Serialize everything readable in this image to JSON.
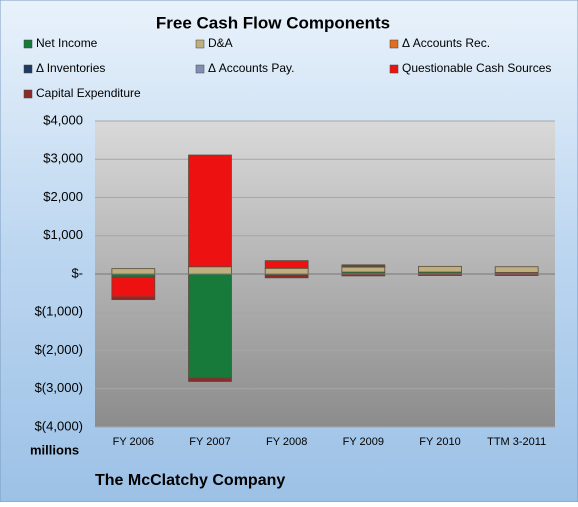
{
  "chart_data": {
    "type": "stacked_bar",
    "title": "Free Cash Flow Components",
    "categories": [
      "FY 2006",
      "FY 2007",
      "FY 2008",
      "FY 2009",
      "FY 2010",
      "TTM 3-2011"
    ],
    "series": [
      {
        "name": "Net Income",
        "color": "#17793a",
        "values": [
          -80,
          -2720,
          -20,
          50,
          50,
          40
        ]
      },
      {
        "name": "D&A",
        "color": "#bfae7e",
        "values": [
          140,
          190,
          150,
          130,
          150,
          150
        ]
      },
      {
        "name": "Δ Accounts Rec.",
        "color": "#e46c1c",
        "values": [
          0,
          0,
          0,
          0,
          0,
          0
        ]
      },
      {
        "name": "Δ Inventories",
        "color": "#1f3a5f",
        "values": [
          0,
          0,
          0,
          0,
          0,
          0
        ]
      },
      {
        "name": "Δ Accounts Pay.",
        "color": "#7f90b4",
        "values": [
          0,
          0,
          0,
          20,
          0,
          0
        ]
      },
      {
        "name": "Questionable Cash Sources",
        "color": "#ee1111",
        "values": [
          -520,
          2920,
          200,
          40,
          0,
          0
        ]
      },
      {
        "name": "Capital Expenditure",
        "color": "#8c2a2a",
        "values": [
          -70,
          -90,
          -80,
          -50,
          -40,
          -40
        ]
      }
    ],
    "ylim": [
      -4000,
      4000
    ],
    "yticks": [
      {
        "value": -4000,
        "label": "$(4,000)"
      },
      {
        "value": -3000,
        "label": "$(3,000)"
      },
      {
        "value": -2000,
        "label": "$(2,000)"
      },
      {
        "value": -1000,
        "label": "$(1,000)"
      },
      {
        "value": 0,
        "label": "$-"
      },
      {
        "value": 1000,
        "label": "$1,000"
      },
      {
        "value": 2000,
        "label": "$2,000"
      },
      {
        "value": 3000,
        "label": "$3,000"
      },
      {
        "value": 4000,
        "label": "$4,000"
      }
    ],
    "grid": true,
    "ylabel": "millions",
    "footer": "The McClatchy Company"
  }
}
